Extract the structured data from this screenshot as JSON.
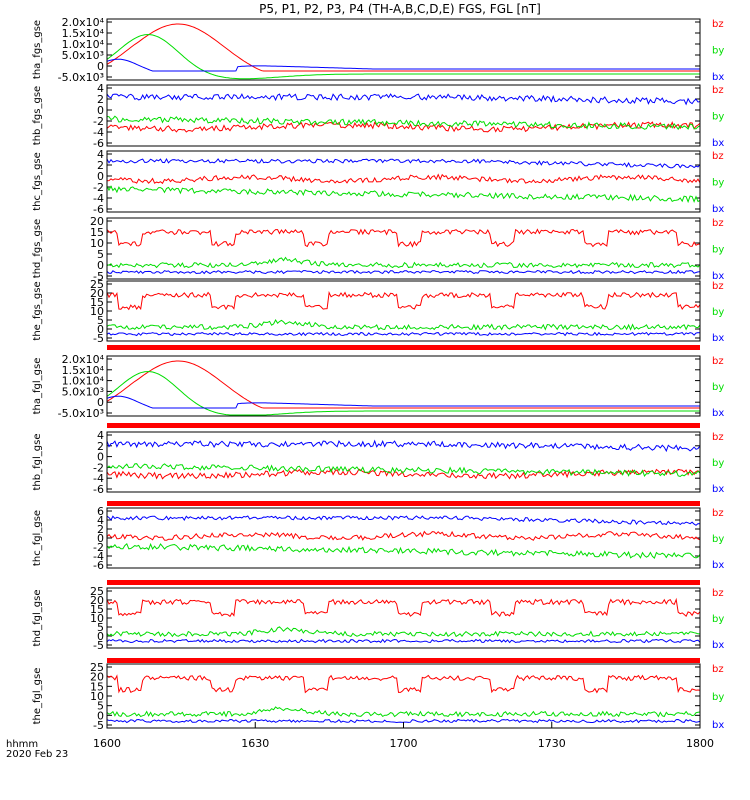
{
  "title": "P5, P1, P2, P3, P4 (TH-A,B,C,D,E) FGS, FGL [nT]",
  "footer": {
    "line1": "hhmm",
    "line2": "2020 Feb 23"
  },
  "colors": {
    "bz": "#ff0000",
    "by": "#00dd00",
    "bx": "#0000ff"
  },
  "chart_data": {
    "type": "line",
    "xlabel": "hhmm",
    "xlim": [
      1600,
      1800
    ],
    "xticks": [
      "1600",
      "1630",
      "1700",
      "1730",
      "1800"
    ],
    "series_names": [
      "bz",
      "by",
      "bx"
    ],
    "panels": [
      {
        "id": "tha_fgs_gse",
        "ylabel": "tha_fgs_gse",
        "kind": "big",
        "yticks": [
          "2.0x10⁴",
          "1.5x10⁴",
          "1.0x10⁴",
          "5.0x10³",
          "0",
          "-5.0x10³"
        ],
        "legend": [
          "bz",
          "by",
          "bx"
        ]
      },
      {
        "id": "thb_fgs_gse",
        "ylabel": "thb_fgs_gse",
        "kind": "b",
        "yticks": [
          "4",
          "2",
          "0",
          "-2",
          "-4",
          "-6"
        ],
        "legend": [
          "bz",
          "by",
          "bx"
        ]
      },
      {
        "id": "thc_fgs_gse",
        "ylabel": "thc_fgs_gse",
        "kind": "c",
        "yticks": [
          "4",
          "2",
          "0",
          "-2",
          "-4",
          "-6"
        ],
        "legend": [
          "bz",
          "by",
          "bx"
        ]
      },
      {
        "id": "thd_fgs_gse",
        "ylabel": "thd_fgs_gse",
        "kind": "de",
        "yticks": [
          "20",
          "15",
          "10",
          "5",
          "0",
          "-5"
        ],
        "legend": [
          "bz",
          "by",
          "bx"
        ]
      },
      {
        "id": "the_fgs_gse",
        "ylabel": "the_fgs_gse",
        "kind": "de",
        "yticks": [
          "25",
          "20",
          "15",
          "10",
          "5",
          "0",
          "-5"
        ],
        "legend": [
          "bz",
          "by",
          "bx"
        ]
      },
      {
        "id": "tha_fgl_gse",
        "ylabel": "tha_fgl_gse",
        "kind": "big",
        "yticks": [
          "2.0x10⁴",
          "1.5x10⁴",
          "1.0x10⁴",
          "5.0x10³",
          "0",
          "-5.0x10³"
        ],
        "legend": [
          "bz",
          "by",
          "bx"
        ]
      },
      {
        "id": "thb_fgl_gse",
        "ylabel": "thb_fgl_gse",
        "kind": "b",
        "yticks": [
          "4",
          "2",
          "0",
          "-2",
          "-4",
          "-6"
        ],
        "legend": [
          "bz",
          "by",
          "bx"
        ]
      },
      {
        "id": "thc_fgl_gse",
        "ylabel": "thc_fgl_gse",
        "kind": "c",
        "yticks": [
          "6",
          "4",
          "2",
          "0",
          "-2",
          "-4",
          "-6"
        ],
        "legend": [
          "bz",
          "by",
          "bx"
        ]
      },
      {
        "id": "thd_fgl_gse",
        "ylabel": "thd_fgl_gse",
        "kind": "de",
        "yticks": [
          "25",
          "20",
          "15",
          "10",
          "5",
          "0",
          "-5"
        ],
        "legend": [
          "bz",
          "by",
          "bx"
        ]
      },
      {
        "id": "the_fgl_gse",
        "ylabel": "the_fgl_gse",
        "kind": "de",
        "yticks": [
          "25",
          "20",
          "15",
          "10",
          "5",
          "0",
          "-5"
        ],
        "legend": [
          "bz",
          "by",
          "bx"
        ]
      }
    ]
  }
}
